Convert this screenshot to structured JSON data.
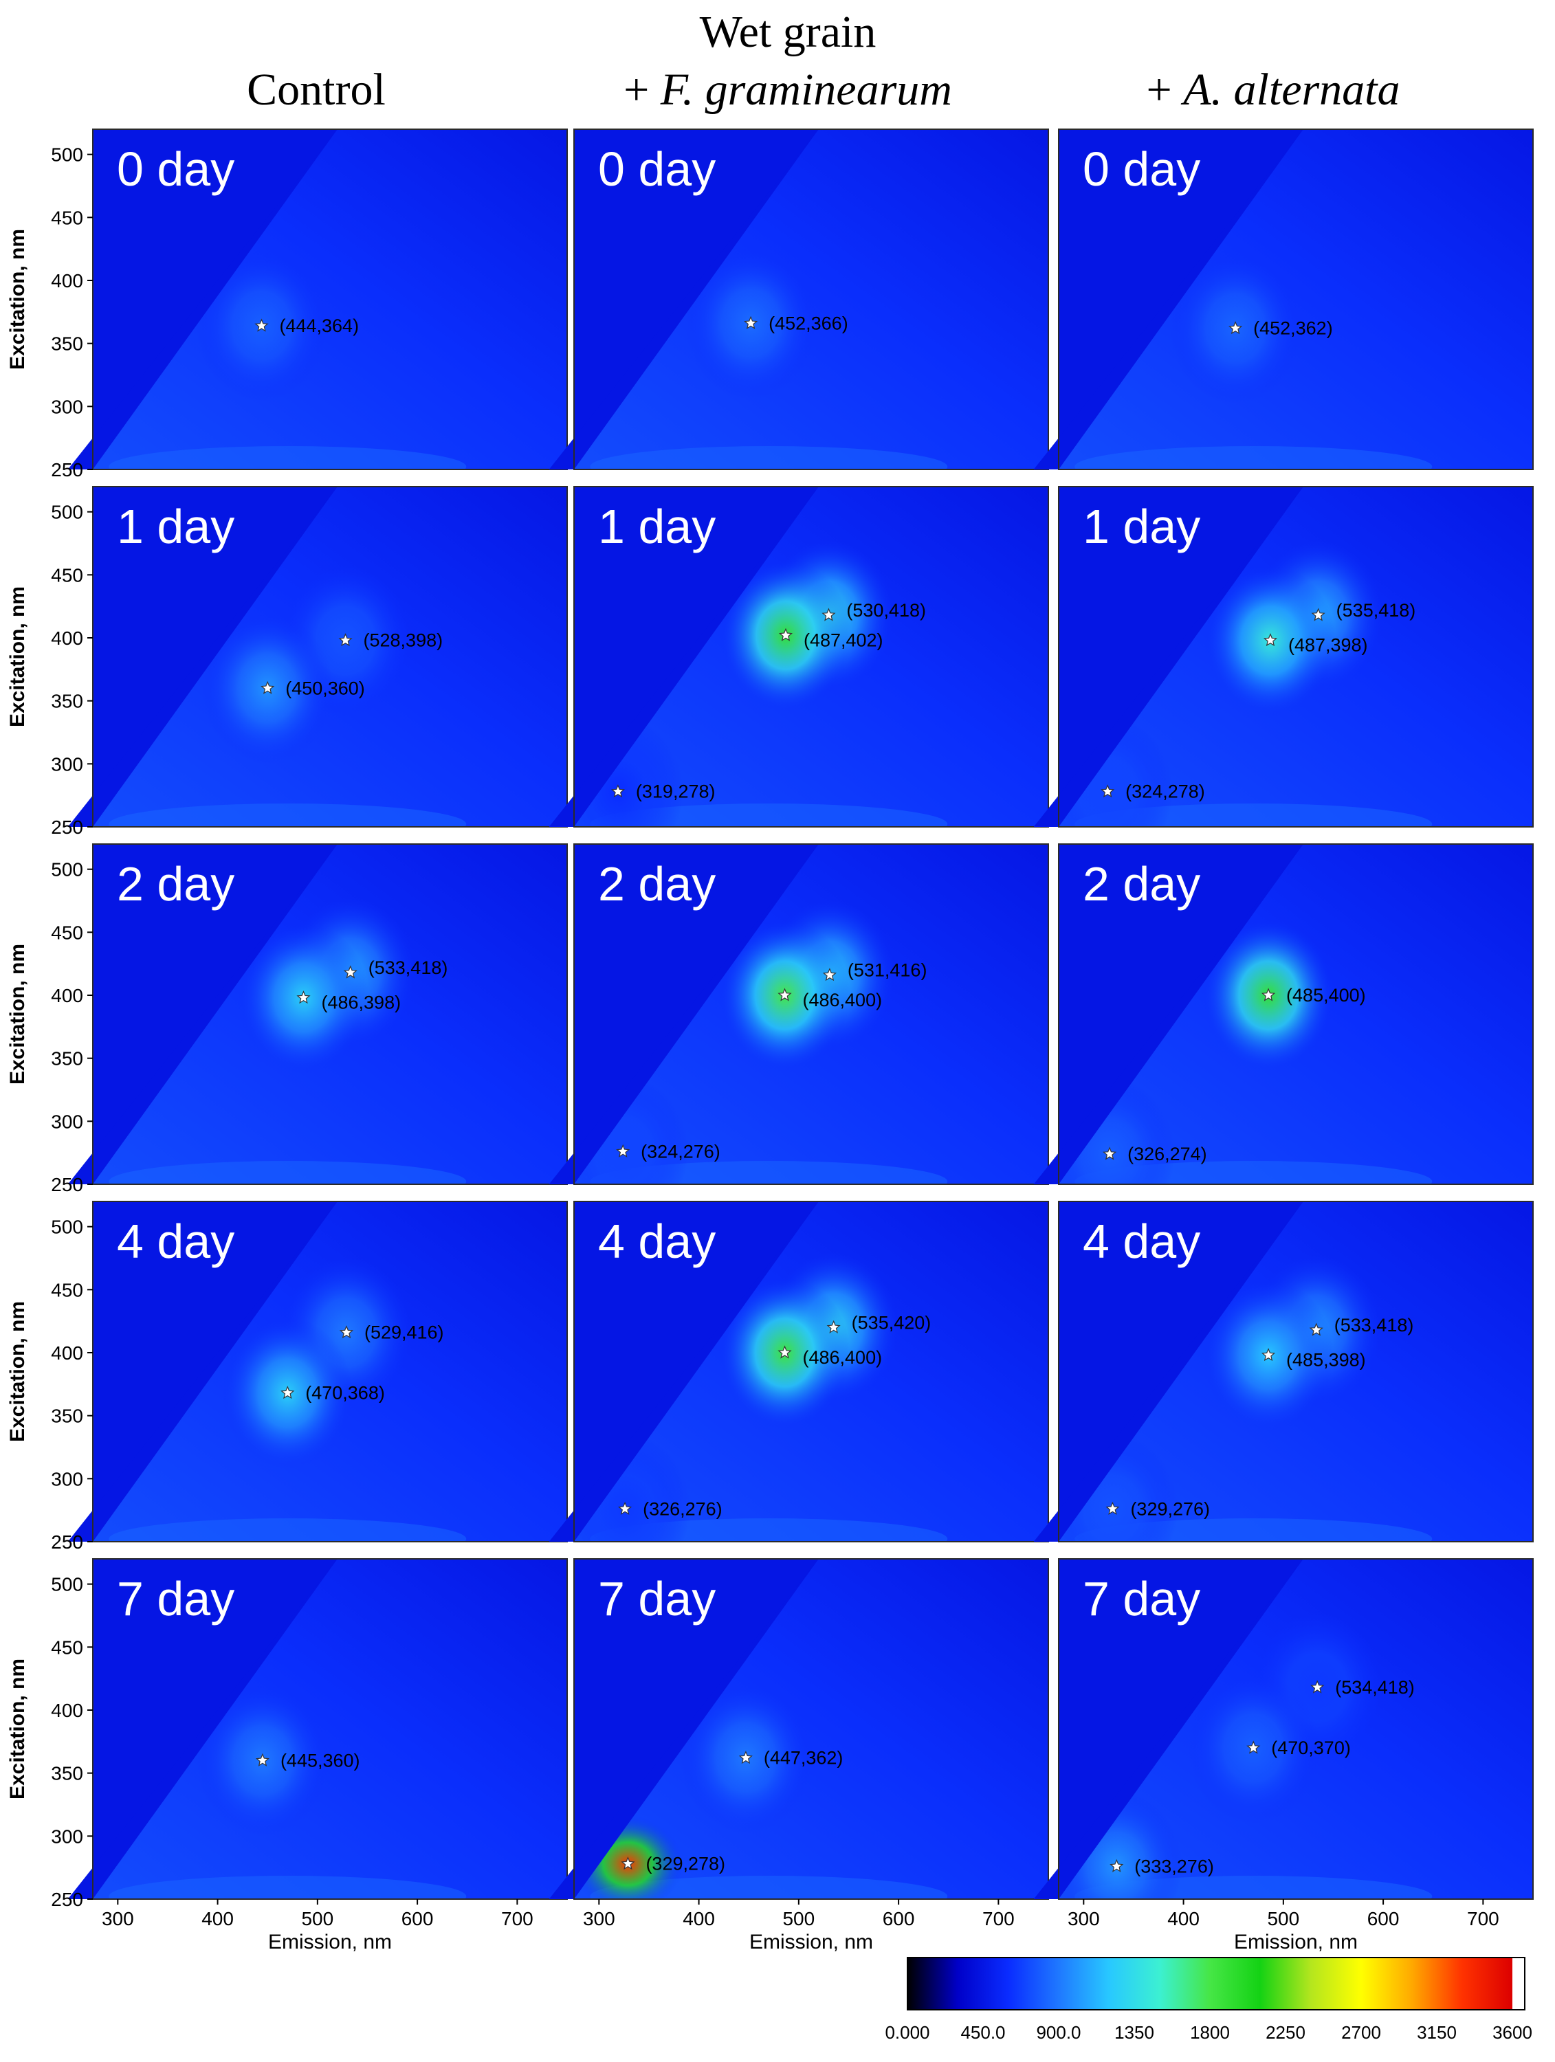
{
  "header": {
    "group_title": "Wet grain",
    "columns": [
      {
        "label": "Control",
        "species": ""
      },
      {
        "label": "+ ",
        "species": "F. graminearum"
      },
      {
        "label": "+ ",
        "species": "A. alternata"
      }
    ]
  },
  "chart_data": {
    "type": "heatmap",
    "xlabel": "Emission, nm",
    "ylabel": "Excitation, nm",
    "xlim": [
      275,
      750
    ],
    "ylim": [
      250,
      520
    ],
    "xticks": [
      300,
      400,
      500,
      600,
      700
    ],
    "yticks": [
      250,
      300,
      350,
      400,
      450,
      500
    ],
    "colorbar": {
      "min": 0,
      "max": 3600,
      "tick_labels": [
        "0.000",
        "450.0",
        "900.0",
        "1350",
        "1800",
        "2250",
        "2700",
        "3150",
        "3600"
      ],
      "colors": [
        "#000000",
        "#0000c8",
        "#0a2cff",
        "#1f78ff",
        "#28c8ff",
        "#3cf0d2",
        "#46e646",
        "#14d214",
        "#b4e61e",
        "#ffff00",
        "#ffaa00",
        "#ff3200",
        "#dc0000"
      ]
    },
    "rows": [
      "0 day",
      "1 day",
      "2 day",
      "4 day",
      "7 day"
    ],
    "panels": [
      {
        "row": 0,
        "col": 0,
        "label": "0 day",
        "peaks": [
          {
            "em": 444,
            "ex": 364,
            "text": "(444,364)"
          }
        ]
      },
      {
        "row": 0,
        "col": 1,
        "label": "0 day",
        "peaks": [
          {
            "em": 452,
            "ex": 366,
            "text": "(452,366)"
          }
        ]
      },
      {
        "row": 0,
        "col": 2,
        "label": "0 day",
        "peaks": [
          {
            "em": 452,
            "ex": 362,
            "text": "(452,362)"
          }
        ]
      },
      {
        "row": 1,
        "col": 0,
        "label": "1 day",
        "peaks": [
          {
            "em": 528,
            "ex": 398,
            "text": "(528,398)"
          },
          {
            "em": 450,
            "ex": 360,
            "text": "(450,360)"
          }
        ]
      },
      {
        "row": 1,
        "col": 1,
        "label": "1 day",
        "peaks": [
          {
            "em": 530,
            "ex": 418,
            "text": "(530,418)"
          },
          {
            "em": 487,
            "ex": 402,
            "text": "(487,402)"
          },
          {
            "em": 319,
            "ex": 278,
            "text": "(319,278)"
          }
        ]
      },
      {
        "row": 1,
        "col": 2,
        "label": "1 day",
        "peaks": [
          {
            "em": 535,
            "ex": 418,
            "text": "(535,418)"
          },
          {
            "em": 487,
            "ex": 398,
            "text": "(487,398)"
          },
          {
            "em": 324,
            "ex": 278,
            "text": "(324,278)"
          }
        ]
      },
      {
        "row": 2,
        "col": 0,
        "label": "2 day",
        "peaks": [
          {
            "em": 533,
            "ex": 418,
            "text": "(533,418)"
          },
          {
            "em": 486,
            "ex": 398,
            "text": "(486,398)"
          }
        ]
      },
      {
        "row": 2,
        "col": 1,
        "label": "2 day",
        "peaks": [
          {
            "em": 531,
            "ex": 416,
            "text": "(531,416)"
          },
          {
            "em": 486,
            "ex": 400,
            "text": "(486,400)"
          },
          {
            "em": 324,
            "ex": 276,
            "text": "(324,276)"
          }
        ]
      },
      {
        "row": 2,
        "col": 2,
        "label": "2 day",
        "peaks": [
          {
            "em": 485,
            "ex": 400,
            "text": "(485,400)"
          },
          {
            "em": 326,
            "ex": 274,
            "text": "(326,274)"
          }
        ]
      },
      {
        "row": 3,
        "col": 0,
        "label": "4 day",
        "peaks": [
          {
            "em": 529,
            "ex": 416,
            "text": "(529,416)"
          },
          {
            "em": 470,
            "ex": 368,
            "text": "(470,368)"
          }
        ]
      },
      {
        "row": 3,
        "col": 1,
        "label": "4 day",
        "peaks": [
          {
            "em": 535,
            "ex": 420,
            "text": "(535,420)"
          },
          {
            "em": 486,
            "ex": 400,
            "text": "(486,400)"
          },
          {
            "em": 326,
            "ex": 276,
            "text": "(326,276)"
          }
        ]
      },
      {
        "row": 3,
        "col": 2,
        "label": "4 day",
        "peaks": [
          {
            "em": 533,
            "ex": 418,
            "text": "(533,418)"
          },
          {
            "em": 485,
            "ex": 398,
            "text": "(485,398)"
          },
          {
            "em": 329,
            "ex": 276,
            "text": "(329,276)"
          }
        ]
      },
      {
        "row": 4,
        "col": 0,
        "label": "7 day",
        "peaks": [
          {
            "em": 445,
            "ex": 360,
            "text": "(445,360)"
          }
        ]
      },
      {
        "row": 4,
        "col": 1,
        "label": "7 day",
        "peaks": [
          {
            "em": 447,
            "ex": 362,
            "text": "(447,362)"
          },
          {
            "em": 329,
            "ex": 278,
            "text": "(329,278)"
          }
        ]
      },
      {
        "row": 4,
        "col": 2,
        "label": "7 day",
        "peaks": [
          {
            "em": 534,
            "ex": 418,
            "text": "(534,418)"
          },
          {
            "em": 470,
            "ex": 370,
            "text": "(470,370)"
          },
          {
            "em": 333,
            "ex": 276,
            "text": "(333,276)"
          }
        ]
      }
    ],
    "peak_intensity": [
      [
        [
          800
        ],
        [
          850
        ],
        [
          820
        ]
      ],
      [
        [
          750,
          1000
        ],
        [
          1350,
          1900,
          600
        ],
        [
          1100,
          1450,
          700
        ]
      ],
      [
        [
          1050,
          1250
        ],
        [
          1250,
          1800,
          700
        ],
        [
          1900,
          800
        ]
      ],
      [
        [
          900,
          1250
        ],
        [
          1300,
          1850,
          650
        ],
        [
          1000,
          1200,
          750
        ]
      ],
      [
        [
          900
        ],
        [
          900,
          3300
        ],
        [
          650,
          800,
          1000
        ]
      ]
    ],
    "grid": false,
    "legend": "bottom-right colorbar"
  }
}
